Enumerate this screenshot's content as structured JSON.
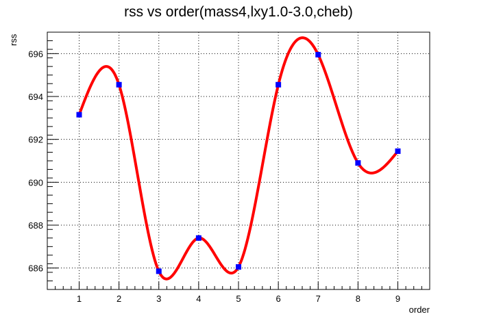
{
  "chart_data": {
    "type": "line",
    "title": "rss vs order(mass4,lxy1.0-3.0,cheb)",
    "xlabel": "order",
    "ylabel": "rss",
    "xlim": [
      0.2,
      9.8
    ],
    "ylim": [
      685.0,
      697.0
    ],
    "x_ticks": [
      1,
      2,
      3,
      4,
      5,
      6,
      7,
      8,
      9
    ],
    "y_ticks": [
      686,
      688,
      690,
      692,
      694,
      696
    ],
    "grid": true,
    "legend": "none",
    "series": [
      {
        "x": [
          1,
          2,
          3,
          4,
          5,
          6,
          7,
          8,
          9
        ],
        "y": [
          693.15,
          694.55,
          685.85,
          687.4,
          686.05,
          694.55,
          695.95,
          690.9,
          691.45
        ],
        "marker": "square",
        "marker_color": "#0000ff",
        "line_color": "#ff0000",
        "smooth": true
      }
    ]
  }
}
